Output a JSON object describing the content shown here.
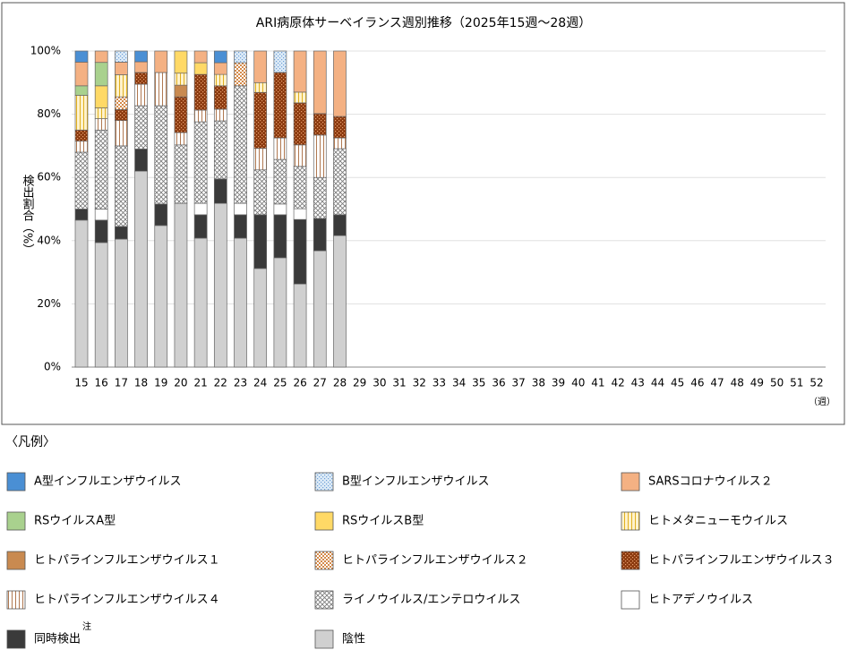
{
  "chart_data": {
    "type": "stacked_bar",
    "title": "ARI病原体サーベイランス週別推移（2025年15週～28週）",
    "y_label": "検出割合（%）",
    "x_unit": "（週）",
    "legend_title": "〈凡例〉",
    "note_mark": "注",
    "categories": [
      "15",
      "16",
      "17",
      "18",
      "19",
      "20",
      "21",
      "22",
      "23",
      "24",
      "25",
      "26",
      "27",
      "28",
      "29",
      "30",
      "31",
      "32",
      "33",
      "34",
      "35",
      "36",
      "37",
      "38",
      "39",
      "40",
      "41",
      "42",
      "43",
      "44",
      "45",
      "46",
      "47",
      "48",
      "49",
      "50",
      "51",
      "52"
    ],
    "ylim": [
      0,
      100
    ],
    "yticks": [
      {
        "value": 0,
        "label": "0%"
      },
      {
        "value": 20,
        "label": "20%"
      },
      {
        "value": 40,
        "label": "40%"
      },
      {
        "value": 60,
        "label": "60%"
      },
      {
        "value": 80,
        "label": "80%"
      },
      {
        "value": 100,
        "label": "100%"
      }
    ],
    "grid": true,
    "series": [
      {
        "name": "A型インフルエンザウイルス",
        "color": "#4a8fd4",
        "pattern": "solid",
        "values": [
          3.5,
          0,
          0,
          3.4,
          0,
          0,
          0,
          3.7,
          0,
          0,
          0,
          0,
          0,
          0,
          null,
          null,
          null,
          null,
          null,
          null,
          null,
          null,
          null,
          null,
          null,
          null,
          null,
          null,
          null,
          null,
          null,
          null,
          null,
          null,
          null,
          null,
          null,
          null
        ]
      },
      {
        "name": "B型インフルエンザウイルス",
        "color": "#ddebf7",
        "pattern": "dots",
        "pattern_color": "#6fa0d8",
        "values": [
          0,
          0,
          3.5,
          0,
          0,
          0,
          0,
          0,
          3.7,
          0,
          6.8,
          0,
          0,
          0,
          null,
          null,
          null,
          null,
          null,
          null,
          null,
          null,
          null,
          null,
          null,
          null,
          null,
          null,
          null,
          null,
          null,
          null,
          null,
          null,
          null,
          null,
          null,
          null
        ]
      },
      {
        "name": "SARSコロナウイルス２",
        "color": "#f4b183",
        "pattern": "solid",
        "values": [
          7.5,
          3.6,
          4,
          3.4,
          6.8,
          0,
          3.7,
          3.7,
          0,
          10,
          0,
          13,
          19.8,
          20.7,
          null,
          null,
          null,
          null,
          null,
          null,
          null,
          null,
          null,
          null,
          null,
          null,
          null,
          null,
          null,
          null,
          null,
          null,
          null,
          null,
          null,
          null,
          null,
          null
        ]
      },
      {
        "name": "RSウイルスA型",
        "color": "#a9d18e",
        "pattern": "solid",
        "values": [
          3,
          7.4,
          0,
          0,
          0,
          0,
          0,
          0,
          0,
          0,
          0,
          0,
          0,
          0,
          null,
          null,
          null,
          null,
          null,
          null,
          null,
          null,
          null,
          null,
          null,
          null,
          null,
          null,
          null,
          null,
          null,
          null,
          null,
          null,
          null,
          null,
          null,
          null
        ]
      },
      {
        "name": "RSウイルスB型",
        "color": "#ffd966",
        "pattern": "solid",
        "values": [
          0,
          7,
          0,
          0,
          0,
          7,
          3.7,
          0,
          0,
          0,
          0,
          0,
          0,
          0,
          null,
          null,
          null,
          null,
          null,
          null,
          null,
          null,
          null,
          null,
          null,
          null,
          null,
          null,
          null,
          null,
          null,
          null,
          null,
          null,
          null,
          null,
          null,
          null
        ]
      },
      {
        "name": "ヒトメタニューモウイルス",
        "color": "#fff2cc",
        "pattern": "vlines",
        "pattern_color": "#e0b020",
        "values": [
          11,
          3.4,
          7,
          0,
          0,
          3.8,
          0,
          3.6,
          0,
          3.1,
          0,
          3.4,
          0,
          0,
          null,
          null,
          null,
          null,
          null,
          null,
          null,
          null,
          null,
          null,
          null,
          null,
          null,
          null,
          null,
          null,
          null,
          null,
          null,
          null,
          null,
          null,
          null,
          null
        ]
      },
      {
        "name": "ヒトパラインフルエンザウイルス１",
        "color": "#c98a50",
        "pattern": "solid",
        "values": [
          0,
          0,
          0,
          0,
          0,
          3.7,
          0,
          0,
          0,
          0,
          0,
          0,
          0,
          0,
          null,
          null,
          null,
          null,
          null,
          null,
          null,
          null,
          null,
          null,
          null,
          null,
          null,
          null,
          null,
          null,
          null,
          null,
          null,
          null,
          null,
          null,
          null,
          null
        ]
      },
      {
        "name": "ヒトパラインフルエンザウイルス２",
        "color": "#ffffff",
        "pattern": "checker",
        "pattern_color": "#d48a4a",
        "values": [
          0,
          0,
          4,
          0,
          0,
          0,
          0,
          0,
          7.3,
          0,
          0,
          0,
          0,
          0,
          null,
          null,
          null,
          null,
          null,
          null,
          null,
          null,
          null,
          null,
          null,
          null,
          null,
          null,
          null,
          null,
          null,
          null,
          null,
          null,
          null,
          null,
          null,
          null
        ]
      },
      {
        "name": "ヒトパラインフルエンザウイルス３",
        "color": "#8b3a0f",
        "pattern": "dots",
        "pattern_color": "#e8a070",
        "values": [
          3.5,
          0,
          3.5,
          3.7,
          0,
          11.3,
          11.3,
          7.4,
          0,
          17.7,
          20.7,
          13.3,
          6.8,
          6.8,
          null,
          null,
          null,
          null,
          null,
          null,
          null,
          null,
          null,
          null,
          null,
          null,
          null,
          null,
          null,
          null,
          null,
          null,
          null,
          null,
          null,
          null,
          null,
          null
        ]
      },
      {
        "name": "ヒトパラインフルエンザウイルス４",
        "color": "#ffffff",
        "pattern": "vlines",
        "pattern_color": "#b07850",
        "values": [
          3.5,
          3.6,
          8,
          6.8,
          10.5,
          3.9,
          3.7,
          3.7,
          0,
          6.8,
          6.8,
          6.8,
          13.4,
          3.4,
          null,
          null,
          null,
          null,
          null,
          null,
          null,
          null,
          null,
          null,
          null,
          null,
          null,
          null,
          null,
          null,
          null,
          null,
          null,
          null,
          null,
          null,
          null,
          null
        ]
      },
      {
        "name": "ライノウイルス/エンテロウイルス",
        "color": "#ffffff",
        "pattern": "crosshatch",
        "pattern_color": "#777777",
        "values": [
          18,
          25,
          25.5,
          13.7,
          31.1,
          18.5,
          25.8,
          18.4,
          37.2,
          14.2,
          14.1,
          13.4,
          13,
          20.9,
          null,
          null,
          null,
          null,
          null,
          null,
          null,
          null,
          null,
          null,
          null,
          null,
          null,
          null,
          null,
          null,
          null,
          null,
          null,
          null,
          null,
          null,
          null,
          null
        ]
      },
      {
        "name": "ヒトアデノウイルス",
        "color": "#ffffff",
        "pattern": "solid",
        "values": [
          0,
          3.5,
          0,
          0,
          0,
          0,
          3.6,
          0,
          3.6,
          0,
          3.4,
          3.4,
          0,
          0,
          null,
          null,
          null,
          null,
          null,
          null,
          null,
          null,
          null,
          null,
          null,
          null,
          null,
          null,
          null,
          null,
          null,
          null,
          null,
          null,
          null,
          null,
          null,
          null
        ]
      },
      {
        "name": "同時検出",
        "color": "#3a3a3a",
        "pattern": "solid",
        "values": [
          3.5,
          7.1,
          4,
          7,
          6.8,
          0,
          7.4,
          7.7,
          7.4,
          17,
          13.6,
          20.4,
          10.2,
          6.6,
          null,
          null,
          null,
          null,
          null,
          null,
          null,
          null,
          null,
          null,
          null,
          null,
          null,
          null,
          null,
          null,
          null,
          null,
          null,
          null,
          null,
          null,
          null,
          null
        ]
      },
      {
        "name": "陰性",
        "color": "#d0d0d0",
        "pattern": "solid",
        "values": [
          46.5,
          39.4,
          40.5,
          62,
          44.8,
          51.8,
          40.8,
          51.8,
          40.8,
          31.2,
          34.6,
          26.3,
          36.8,
          41.6,
          null,
          null,
          null,
          null,
          null,
          null,
          null,
          null,
          null,
          null,
          null,
          null,
          null,
          null,
          null,
          null,
          null,
          null,
          null,
          null,
          null,
          null,
          null,
          null
        ]
      }
    ]
  }
}
